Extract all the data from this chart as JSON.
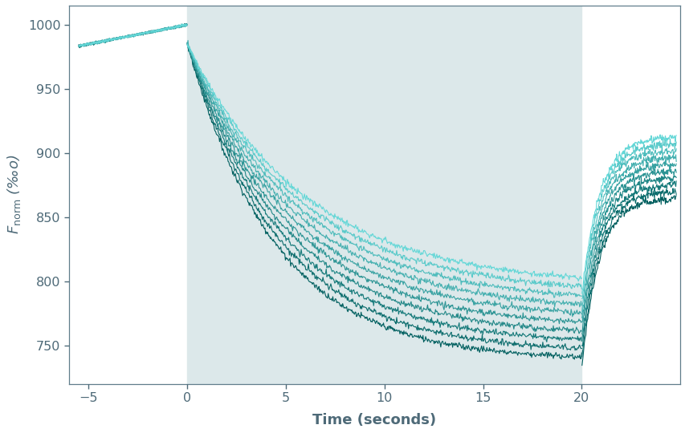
{
  "title": "",
  "xlabel": "Time (seconds)",
  "xlim": [
    -6,
    25
  ],
  "ylim": [
    720,
    1015
  ],
  "yticks": [
    750,
    800,
    850,
    900,
    950,
    1000
  ],
  "xticks": [
    -5,
    0,
    5,
    10,
    15,
    20
  ],
  "shaded_region": [
    0,
    20
  ],
  "shaded_color": "#dce8ea",
  "n_curves": 10,
  "color_dark": [
    0,
    95,
    95
  ],
  "color_light": [
    100,
    215,
    215
  ],
  "background_color": "#ffffff",
  "border_color": "#607d8b",
  "label_color": "#4e6a78",
  "noise_scale_pre": 0.8,
  "noise_scale_laser": 1.2,
  "noise_scale_post": 1.5
}
